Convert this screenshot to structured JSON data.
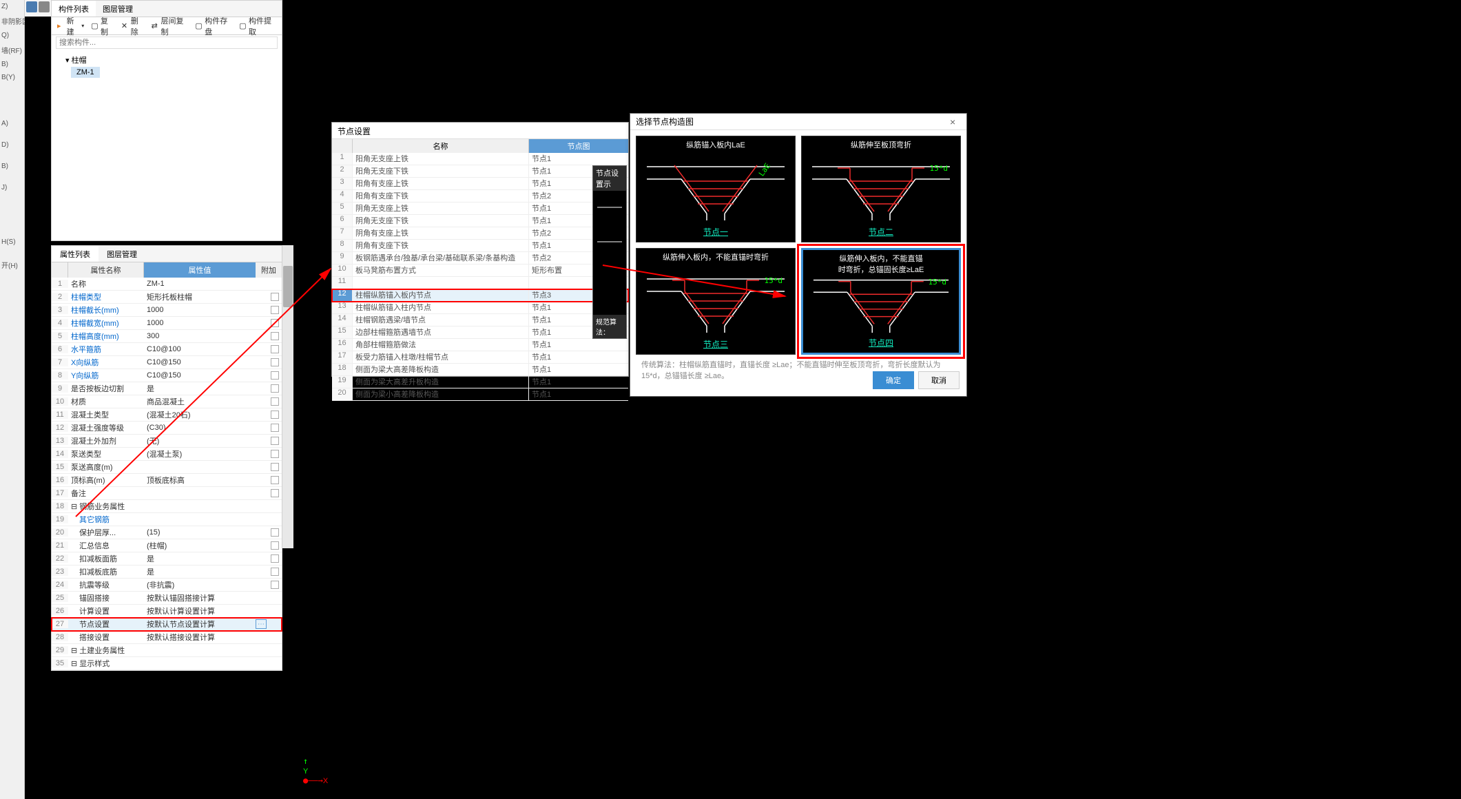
{
  "left_tabs": [
    "Z)",
    "非阴影区(Z)",
    "Q)",
    "墙(RF)",
    "B)",
    "B(Y)",
    "",
    "",
    "",
    "A)",
    "",
    "D)",
    "",
    "B)",
    "",
    "J)",
    "",
    "",
    "",
    "H(S)",
    "",
    "开(H)",
    "",
    ""
  ],
  "top_icons": {
    "color": "#4a7bb0"
  },
  "tree": {
    "tabs": [
      "构件列表",
      "图层管理"
    ],
    "toolbar": {
      "new_label": "新建",
      "new_icon": "+",
      "copy_label": "复制",
      "delete_label": "删除",
      "layer_copy_label": "层间复制",
      "save_label": "构件存盘",
      "extract_label": "构件提取"
    },
    "search_placeholder": "搜索构件...",
    "root_node": "柱帽",
    "child_node": "ZM-1"
  },
  "prop": {
    "tabs": [
      "属性列表",
      "图层管理"
    ],
    "header": {
      "name": "属性名称",
      "value": "属性值",
      "add": "附加"
    },
    "rows": [
      {
        "num": "1",
        "name": "名称",
        "val": "ZM-1",
        "black": true
      },
      {
        "num": "2",
        "name": "柱帽类型",
        "val": "矩形托板柱帽",
        "check": true
      },
      {
        "num": "3",
        "name": "柱帽截长(mm)",
        "val": "1000",
        "check": true
      },
      {
        "num": "4",
        "name": "柱帽截宽(mm)",
        "val": "1000",
        "check": true
      },
      {
        "num": "5",
        "name": "柱帽高度(mm)",
        "val": "300",
        "check": true
      },
      {
        "num": "6",
        "name": "水平箍筋",
        "val": "C10@100",
        "check": true
      },
      {
        "num": "7",
        "name": "X向纵筋",
        "val": "C10@150",
        "check": true
      },
      {
        "num": "8",
        "name": "Y向纵筋",
        "val": "C10@150",
        "check": true
      },
      {
        "num": "9",
        "name": "是否按板边切割",
        "val": "是",
        "check": true,
        "black": true
      },
      {
        "num": "10",
        "name": "材质",
        "val": "商品混凝土",
        "check": true,
        "black": true
      },
      {
        "num": "11",
        "name": "混凝土类型",
        "val": "(混凝土20石)",
        "check": true,
        "black": true
      },
      {
        "num": "12",
        "name": "混凝土强度等级",
        "val": "(C30)",
        "check": true,
        "black": true
      },
      {
        "num": "13",
        "name": "混凝土外加剂",
        "val": "(无)",
        "check": true,
        "black": true
      },
      {
        "num": "14",
        "name": "泵送类型",
        "val": "(混凝土泵)",
        "check": true,
        "black": true
      },
      {
        "num": "15",
        "name": "泵送高度(m)",
        "val": "",
        "check": true,
        "black": true
      },
      {
        "num": "16",
        "name": "顶标高(m)",
        "val": "顶板底标高",
        "check": true,
        "black": true
      },
      {
        "num": "17",
        "name": "备注",
        "val": "",
        "check": true,
        "black": true
      },
      {
        "num": "18",
        "name": "钢筋业务属性",
        "val": "",
        "header": true,
        "black": true
      },
      {
        "num": "19",
        "name": "其它钢筋",
        "val": "",
        "indent": true
      },
      {
        "num": "20",
        "name": "保护层厚...",
        "val": "(15)",
        "check": true,
        "indent": true,
        "black": true
      },
      {
        "num": "21",
        "name": "汇总信息",
        "val": "(柱帽)",
        "check": true,
        "indent": true,
        "black": true
      },
      {
        "num": "22",
        "name": "扣减板面筋",
        "val": "是",
        "check": true,
        "indent": true,
        "black": true
      },
      {
        "num": "23",
        "name": "扣减板底筋",
        "val": "是",
        "check": true,
        "indent": true,
        "black": true
      },
      {
        "num": "24",
        "name": "抗震等级",
        "val": "(非抗震)",
        "check": true,
        "indent": true,
        "black": true
      },
      {
        "num": "25",
        "name": "锚固搭接",
        "val": "按默认锚固搭接计算",
        "indent": true,
        "black": true
      },
      {
        "num": "26",
        "name": "计算设置",
        "val": "按默认计算设置计算",
        "indent": true,
        "black": true
      },
      {
        "num": "27",
        "name": "节点设置",
        "val": "按默认节点设置计算",
        "indent": true,
        "highlighted": true,
        "selected": true,
        "black": true,
        "has_btn": true
      },
      {
        "num": "28",
        "name": "搭接设置",
        "val": "按默认搭接设置计算",
        "indent": true,
        "black": true
      },
      {
        "num": "29",
        "name": "土建业务属性",
        "val": "",
        "header": true,
        "black": true
      },
      {
        "num": "35",
        "name": "显示样式",
        "val": "",
        "header": true,
        "black": true
      }
    ]
  },
  "node_dialog": {
    "title": "节点设置",
    "header": {
      "name": "名称",
      "diagram": "节点图"
    },
    "rows": [
      {
        "num": "1",
        "name": "阳角无支座上铁",
        "diagram": "节点1"
      },
      {
        "num": "2",
        "name": "阳角无支座下铁",
        "diagram": "节点1"
      },
      {
        "num": "3",
        "name": "阳角有支座上铁",
        "diagram": "节点1"
      },
      {
        "num": "4",
        "name": "阳角有支座下铁",
        "diagram": "节点2"
      },
      {
        "num": "5",
        "name": "阴角无支座上铁",
        "diagram": "节点1"
      },
      {
        "num": "6",
        "name": "阴角无支座下铁",
        "diagram": "节点1"
      },
      {
        "num": "7",
        "name": "阴角有支座上铁",
        "diagram": "节点2"
      },
      {
        "num": "8",
        "name": "阴角有支座下铁",
        "diagram": "节点1"
      },
      {
        "num": "9",
        "name": "板钢筋遇承台/独基/承台梁/基础联系梁/条基构造",
        "diagram": "节点2"
      },
      {
        "num": "10",
        "name": "板马凳筋布置方式",
        "diagram": "矩形布置"
      },
      {
        "num": "11",
        "name": "",
        "diagram": ""
      },
      {
        "num": "12",
        "name": "柱帽纵筋锚入板内节点",
        "diagram": "节点3",
        "highlighted": true,
        "has_btn": true
      },
      {
        "num": "13",
        "name": "柱帽纵筋锚入柱内节点",
        "diagram": "节点1"
      },
      {
        "num": "14",
        "name": "柱帽钢筋遇梁/墙节点",
        "diagram": "节点1"
      },
      {
        "num": "15",
        "name": "边部柱帽箍筋遇墙节点",
        "diagram": "节点1"
      },
      {
        "num": "16",
        "name": "角部柱帽箍筋做法",
        "diagram": "节点1"
      },
      {
        "num": "17",
        "name": "板受力筋锚入柱墩/柱帽节点",
        "diagram": "节点1"
      },
      {
        "num": "18",
        "name": "侧面为梁大高差降板构造",
        "diagram": "节点1"
      },
      {
        "num": "19",
        "name": "侧面为梁大高差升板构造",
        "diagram": "节点1"
      },
      {
        "num": "20",
        "name": "侧面为梁小高差降板构造",
        "diagram": "节点1"
      }
    ]
  },
  "preview": {
    "title": "节点设置示",
    "footer": "规范算法："
  },
  "select_dialog": {
    "title": "选择节点构造图",
    "close": "×",
    "diagrams": [
      {
        "title": "纵筋锚入板内LaE",
        "label": "节点一",
        "ann": "LaE",
        "ann_style": "rotated"
      },
      {
        "title": "纵筋伸至板顶弯折",
        "label": "节点二",
        "ann": "15*d"
      },
      {
        "title": "纵筋伸入板内，不能直锚时弯折",
        "label": "节点三",
        "ann": "15*d"
      },
      {
        "title": "纵筋伸入板内，不能直锚\n时弯折，总锚固长度≥LaE",
        "label": "节点四",
        "ann": "15*d",
        "selected": true,
        "highlighted": true
      }
    ],
    "note_prefix": "传统算法：柱帽纵筋直锚时，直锚长度 ≥Lae；不能直锚时",
    "note_suffix": "伸至板顶弯折，弯折长度默认为 15*d，总锚锚长度 ≥Lae。",
    "ok": "确定",
    "cancel": "取消",
    "colors": {
      "red": "#ef2b2b",
      "white": "#ffffff",
      "green": "#00ff66",
      "cyan": "#13f0c4"
    }
  },
  "axis": {
    "y": "Y",
    "x": "X"
  }
}
